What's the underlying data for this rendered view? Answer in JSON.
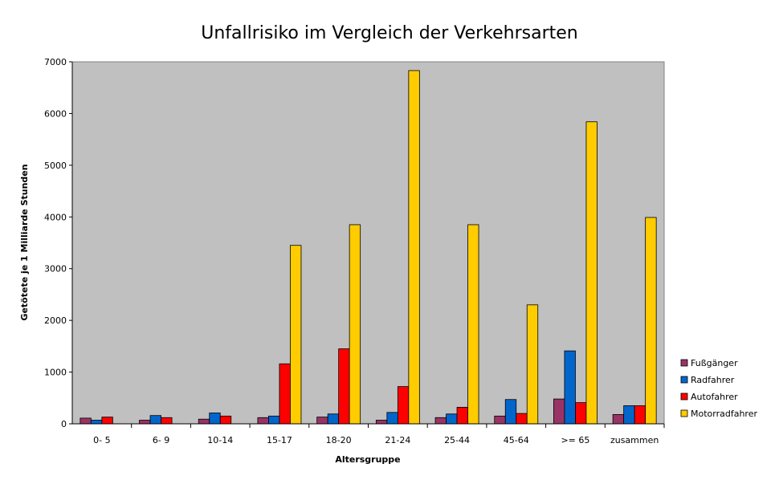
{
  "chart_data": {
    "type": "bar",
    "title": "Unfallrisiko im Vergleich der Verkehrsarten",
    "xlabel": "Altersgruppe",
    "ylabel": "Getötete je 1 Milliarde Stunden",
    "ylim": [
      0,
      7000
    ],
    "yticks": [
      "0",
      "1000",
      "2000",
      "3000",
      "4000",
      "5000",
      "6000",
      "7000"
    ],
    "grid": false,
    "legend_position": "right",
    "categories": [
      "0- 5",
      "6- 9",
      "10-14",
      "15-17",
      "18-20",
      "21-24",
      "25-44",
      "45-64",
      ">= 65",
      "zusammen"
    ],
    "series": [
      {
        "name": "Fußgänger",
        "color": "#993366",
        "values": [
          110,
          70,
          90,
          120,
          130,
          70,
          120,
          150,
          480,
          180
        ]
      },
      {
        "name": "Radfahrer",
        "color": "#0066CC",
        "values": [
          70,
          160,
          210,
          150,
          190,
          220,
          190,
          470,
          1410,
          350
        ]
      },
      {
        "name": "Autofahrer",
        "color": "#FF0000",
        "values": [
          130,
          120,
          150,
          1160,
          1450,
          720,
          320,
          200,
          410,
          350
        ]
      },
      {
        "name": "Motorradfahrer",
        "color": "#FFCC00",
        "values": [
          0,
          0,
          0,
          3450,
          3850,
          6830,
          3850,
          2300,
          5840,
          3990
        ]
      }
    ],
    "plot_background": "#C0C0C0"
  }
}
